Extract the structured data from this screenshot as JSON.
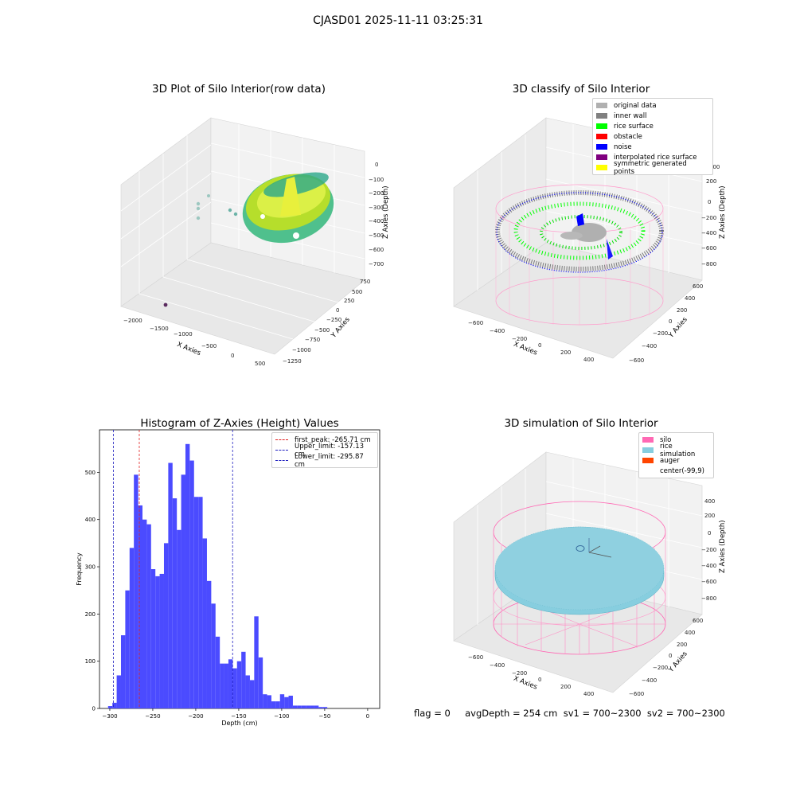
{
  "suptitle": "CJASD01 2025-11-11 03:25:31",
  "footer": "flag = 0     avgDepth = 254 cm  sv1 = 700~2300  sv2 = 700~2300",
  "colors": {
    "histogram_bar": "#4b4bff",
    "first_peak_line": "#e02020",
    "limit_line": "#2020c0",
    "silo_wire": "#ff69b4",
    "rice_simulation": "#87cedf",
    "auger": "#ff4500",
    "noise": "#0000ff",
    "rice_surface": "#00ff00",
    "inner_wall": "#808080",
    "original_data": "#b0b0b0"
  },
  "chart_data": [
    {
      "type": "scatter",
      "dimension": "3d",
      "title": "3D Plot of Silo Interior(row data)",
      "xlabel": "X Axies",
      "ylabel": "Y Axies",
      "zlabel": "Z Axies (Depth)",
      "x_ticks": [
        "−2000",
        "−1500",
        "−1000",
        "−500",
        "0",
        "500"
      ],
      "y_ticks": [
        "750",
        "500",
        "250",
        "0",
        "−250",
        "−500",
        "−750",
        "−1000",
        "−1250"
      ],
      "z_ticks": [
        "0",
        "−100",
        "−200",
        "−300",
        "−400",
        "−500",
        "−600",
        "−700"
      ],
      "colormap": "viridis",
      "zlim": [
        -750,
        0
      ]
    },
    {
      "type": "scatter",
      "dimension": "3d",
      "title": "3D classify of Silo Interior",
      "xlabel": "X Axies",
      "ylabel": "Y Axies",
      "zlabel": "Z Axies (Depth)",
      "x_ticks": [
        "−600",
        "−400",
        "−200",
        "0",
        "200",
        "400"
      ],
      "y_ticks": [
        "600",
        "400",
        "200",
        "0",
        "−200",
        "−400",
        "−600"
      ],
      "z_ticks": [
        "400",
        "200",
        "0",
        "−200",
        "−400",
        "−600",
        "−800"
      ],
      "legend": [
        {
          "label": "original data",
          "color": "#b0b0b0"
        },
        {
          "label": "inner wall",
          "color": "#808080"
        },
        {
          "label": "rice surface",
          "color": "#00ff00"
        },
        {
          "label": "obstacle",
          "color": "#ff0000"
        },
        {
          "label": "noise",
          "color": "#0000ff"
        },
        {
          "label": "interpolated rice surface",
          "color": "#800080"
        },
        {
          "label": "symmetric generated points",
          "color": "#ffff00"
        }
      ],
      "legend_position": "top-right"
    },
    {
      "type": "bar",
      "title": "Histogram of Z-Axies (Height) Values",
      "xlabel": "Depth (cm)",
      "ylabel": "Frequency",
      "xlim": [
        -312,
        14
      ],
      "ylim": [
        0,
        590
      ],
      "x_ticks": [
        -300,
        -250,
        -200,
        -150,
        -100,
        -50,
        0
      ],
      "y_ticks": [
        0,
        100,
        200,
        300,
        400,
        500
      ],
      "bin_width": 5,
      "bins": [
        {
          "x0": -302,
          "count": 5
        },
        {
          "x0": -297,
          "count": 12
        },
        {
          "x0": -292,
          "count": 70
        },
        {
          "x0": -287,
          "count": 155
        },
        {
          "x0": -282,
          "count": 250
        },
        {
          "x0": -277,
          "count": 340
        },
        {
          "x0": -272,
          "count": 495
        },
        {
          "x0": -267,
          "count": 430
        },
        {
          "x0": -262,
          "count": 400
        },
        {
          "x0": -257,
          "count": 390
        },
        {
          "x0": -252,
          "count": 295
        },
        {
          "x0": -247,
          "count": 280
        },
        {
          "x0": -242,
          "count": 285
        },
        {
          "x0": -237,
          "count": 350
        },
        {
          "x0": -232,
          "count": 520
        },
        {
          "x0": -227,
          "count": 445
        },
        {
          "x0": -222,
          "count": 378
        },
        {
          "x0": -217,
          "count": 495
        },
        {
          "x0": -212,
          "count": 560
        },
        {
          "x0": -207,
          "count": 525
        },
        {
          "x0": -202,
          "count": 448
        },
        {
          "x0": -197,
          "count": 448
        },
        {
          "x0": -192,
          "count": 360
        },
        {
          "x0": -187,
          "count": 270
        },
        {
          "x0": -182,
          "count": 222
        },
        {
          "x0": -177,
          "count": 152
        },
        {
          "x0": -172,
          "count": 95
        },
        {
          "x0": -167,
          "count": 95
        },
        {
          "x0": -162,
          "count": 104
        },
        {
          "x0": -157,
          "count": 85
        },
        {
          "x0": -152,
          "count": 100
        },
        {
          "x0": -147,
          "count": 120
        },
        {
          "x0": -142,
          "count": 70
        },
        {
          "x0": -137,
          "count": 60
        },
        {
          "x0": -132,
          "count": 195
        },
        {
          "x0": -127,
          "count": 108
        },
        {
          "x0": -122,
          "count": 30
        },
        {
          "x0": -117,
          "count": 28
        },
        {
          "x0": -112,
          "count": 15
        },
        {
          "x0": -107,
          "count": 15
        },
        {
          "x0": -102,
          "count": 30
        },
        {
          "x0": -97,
          "count": 24
        },
        {
          "x0": -92,
          "count": 27
        },
        {
          "x0": -87,
          "count": 6
        },
        {
          "x0": -82,
          "count": 6
        },
        {
          "x0": -77,
          "count": 6
        },
        {
          "x0": -72,
          "count": 6
        },
        {
          "x0": -67,
          "count": 6
        },
        {
          "x0": -62,
          "count": 6
        },
        {
          "x0": -57,
          "count": 3
        },
        {
          "x0": -52,
          "count": 3
        }
      ],
      "vlines": [
        {
          "label": "first_peak: -265.71 cm",
          "x": -265.71,
          "color": "#e02020"
        },
        {
          "label": "Upper_limit: -157.13 cm",
          "x": -157.13,
          "color": "#2020c0"
        },
        {
          "label": "Lower_limit: -295.87 cm",
          "x": -295.87,
          "color": "#2020c0"
        }
      ],
      "legend_position": "top-right"
    },
    {
      "type": "scatter",
      "dimension": "3d",
      "title": "3D simulation of Silo Interior",
      "xlabel": "X Axies",
      "ylabel": "Y Axies",
      "zlabel": "Z Axies (Depth)",
      "x_ticks": [
        "−600",
        "−400",
        "−200",
        "0",
        "200",
        "400"
      ],
      "y_ticks": [
        "600",
        "400",
        "200",
        "0",
        "−200",
        "−400",
        "−600"
      ],
      "z_ticks": [
        "400",
        "200",
        "0",
        "−200",
        "−400",
        "−600",
        "−800"
      ],
      "legend": [
        {
          "label": "silo",
          "color": "#ff69b4"
        },
        {
          "label": "rice simulation",
          "color": "#87cedf"
        },
        {
          "label": "auger",
          "color": "#ff4500"
        },
        {
          "label": "center(-99,9)",
          "color": ""
        }
      ],
      "legend_position": "top-right"
    }
  ]
}
